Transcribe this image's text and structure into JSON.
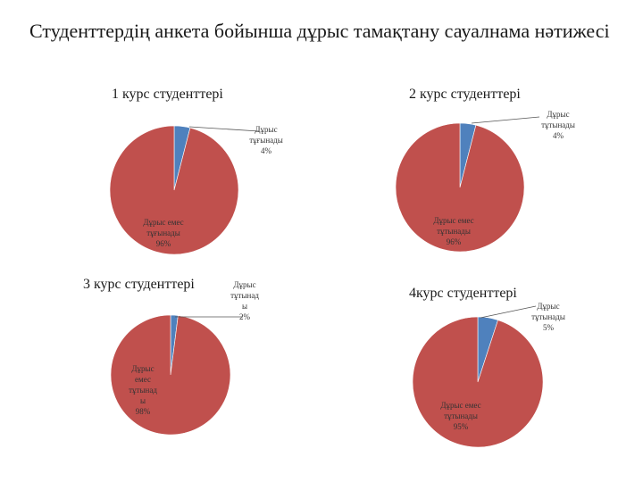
{
  "slide": {
    "title": "Студенттердің  анкета бойынша дұрыс тамақтану  сауалнама нәтижесі"
  },
  "colors": {
    "major": "#C0504D",
    "minor": "#4F81BD",
    "leader": "#555555"
  },
  "chart_data": [
    {
      "type": "pie",
      "title": "1 курс студенттері",
      "slices": [
        {
          "value": 4,
          "label_lines": [
            "Дұрыс",
            "тұғынады",
            "4%"
          ],
          "color": "#4F81BD"
        },
        {
          "value": 96,
          "label_lines": [
            "Дұрыс емес",
            "тұғынады",
            "96%"
          ],
          "color": "#C0504D"
        }
      ]
    },
    {
      "type": "pie",
      "title": "2 курс студенттері",
      "slices": [
        {
          "value": 4,
          "label_lines": [
            "Дұрыс",
            "тұтынады",
            "4%"
          ],
          "color": "#4F81BD"
        },
        {
          "value": 96,
          "label_lines": [
            "Дұрыс емес",
            "тұтынады",
            "96%"
          ],
          "color": "#C0504D"
        }
      ]
    },
    {
      "type": "pie",
      "title": "3 курс студенттері",
      "slices": [
        {
          "value": 2,
          "label_lines": [
            "Дұрыс",
            "тұтынад",
            "ы",
            "2%"
          ],
          "color": "#4F81BD"
        },
        {
          "value": 98,
          "label_lines": [
            "Дұрыс",
            "емес",
            "тұтынад",
            "ы",
            "98%"
          ],
          "color": "#C0504D"
        }
      ]
    },
    {
      "type": "pie",
      "title": "4курс студенттері",
      "slices": [
        {
          "value": 5,
          "label_lines": [
            "Дұрыс",
            "тұтынады",
            "5%"
          ],
          "color": "#4F81BD"
        },
        {
          "value": 95,
          "label_lines": [
            "Дұрыс емес",
            "тұтынады",
            "95%"
          ],
          "color": "#C0504D"
        }
      ]
    }
  ]
}
